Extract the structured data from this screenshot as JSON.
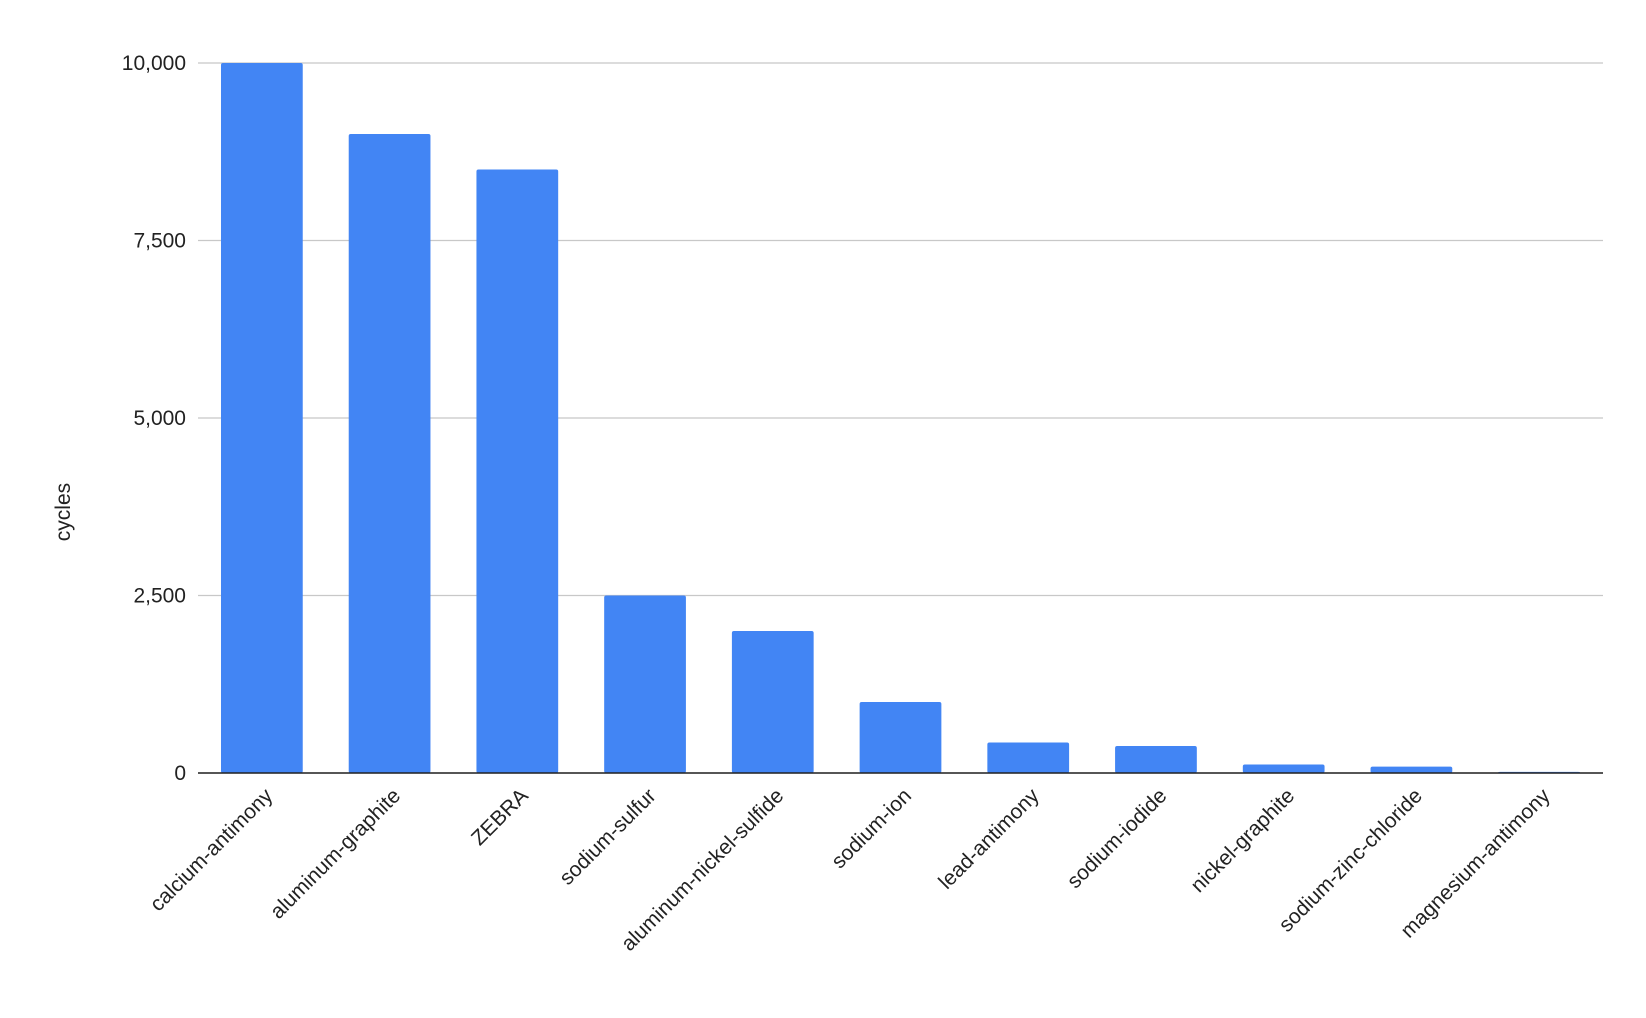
{
  "chart_data": {
    "type": "bar",
    "y_label": "cycles",
    "categories": [
      "calcium-antimony",
      "aluminum-graphite",
      "ZEBRA",
      "sodium-sulfur",
      "aluminum-nickel-sulfide",
      "sodium-ion",
      "lead-antimony",
      "sodium-iodide",
      "nickel-graphite",
      "sodium-zinc-chloride",
      "magnesium-antimony"
    ],
    "values": [
      10000,
      9000,
      8500,
      2500,
      2000,
      1000,
      430,
      380,
      120,
      90,
      15
    ],
    "color": "#4285f4",
    "ylim": [
      0,
      10000
    ],
    "yticks": [
      0,
      {
        "value": 2500,
        "label": "2,500"
      },
      {
        "value": 5000,
        "label": "5,000"
      },
      {
        "value": 7500,
        "label": "7,500"
      },
      {
        "value": 10000,
        "label": "10,000"
      }
    ],
    "grid": true
  }
}
